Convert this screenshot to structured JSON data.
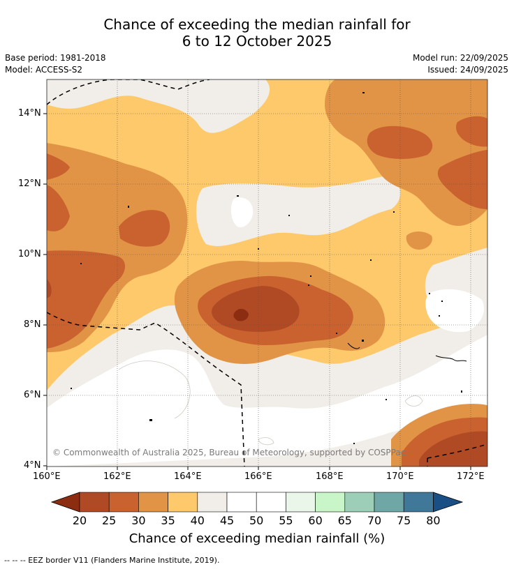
{
  "title": {
    "line1": "Chance of exceeding the median rainfall for",
    "line2": "6 to 12 October 2025"
  },
  "meta": {
    "base_period": "Base period: 1981-2018",
    "model": "Model: ACCESS-S2",
    "model_run": "Model run: 22/09/2025",
    "issued": "Issued: 24/09/2025"
  },
  "axes": {
    "y_ticks": [
      "14°N",
      "12°N",
      "10°N",
      "8°N",
      "6°N",
      "4°N"
    ],
    "x_ticks": [
      "160°E",
      "162°E",
      "164°E",
      "166°E",
      "168°E",
      "170°E",
      "172°E"
    ]
  },
  "copyright": "© Commonwealth of Australia 2025, Bureau of Meteorology, supported by COSPPac",
  "colorbar": {
    "title": "Chance of exceeding median rainfall (%)",
    "labels": [
      "20",
      "25",
      "30",
      "35",
      "40",
      "45",
      "50",
      "55",
      "60",
      "65",
      "70",
      "75",
      "80"
    ],
    "colors": [
      "#8c2d12",
      "#b04a25",
      "#c9622f",
      "#e19446",
      "#fec96a",
      "#f1ede8",
      "#ffffff",
      "#ffffff",
      "#e9f6e9",
      "#c8f6c8",
      "#9dcfb8",
      "#6fa6a6",
      "#3f7898",
      "#1a4f86"
    ]
  },
  "footnote": "--  --  -- EEZ border V11 (Flanders Marine Institute, 2019)."
}
